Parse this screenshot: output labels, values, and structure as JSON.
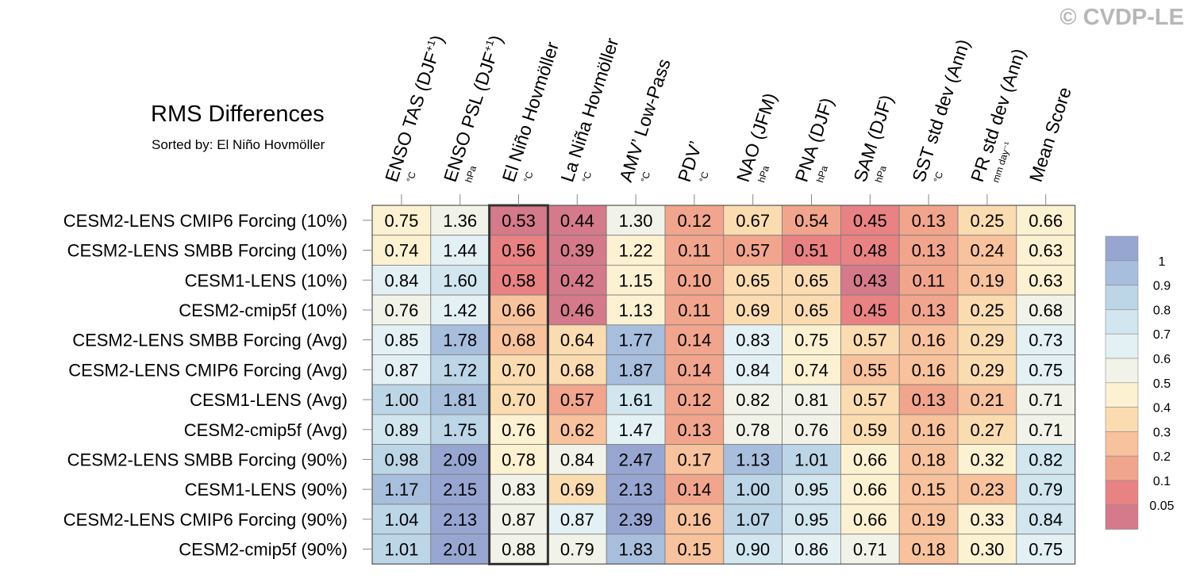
{
  "copyright": "© CVDP-LE",
  "chart_data": {
    "type": "heatmap",
    "title": "RMS Differences",
    "subtitle": "Sorted by: El Niño Hovmöller",
    "highlighted_column": "El Niño Hovmöller",
    "columns": [
      {
        "name": "ENSO TAS (DJF+1)",
        "main": "ENSO TAS (DJF",
        "sup": "+1",
        "close": ")",
        "unit": "°C"
      },
      {
        "name": "ENSO PSL (DJF+1)",
        "main": "ENSO PSL (DJF",
        "sup": "+1",
        "close": ")",
        "unit": "hPa"
      },
      {
        "name": "El Niño Hovmöller",
        "main": "El Niño Hovmöller",
        "sup": "",
        "close": "",
        "unit": "°C"
      },
      {
        "name": "La Niña Hovmöller",
        "main": "La Niña Hovmöller",
        "sup": "",
        "close": "",
        "unit": "°C"
      },
      {
        "name": "AMV’ Low-Pass",
        "main": "AMV’ Low-Pass",
        "sup": "",
        "close": "",
        "unit": "°C"
      },
      {
        "name": "PDV’",
        "main": "PDV’",
        "sup": "",
        "close": "",
        "unit": "°C"
      },
      {
        "name": "NAO (JFM)",
        "main": "NAO (JFM)",
        "sup": "",
        "close": "",
        "unit": "hPa"
      },
      {
        "name": "PNA (DJF)",
        "main": "PNA (DJF)",
        "sup": "",
        "close": "",
        "unit": "hPa"
      },
      {
        "name": "SAM (DJF)",
        "main": "SAM (DJF)",
        "sup": "",
        "close": "",
        "unit": "hPa"
      },
      {
        "name": "SST std dev (Ann)",
        "main": "SST std dev (Ann)",
        "sup": "",
        "close": "",
        "unit": "°C"
      },
      {
        "name": "PR std dev (Ann)",
        "main": "PR std dev (Ann)",
        "sup": "",
        "close": "",
        "unit": "mm day⁻¹"
      },
      {
        "name": "Mean Score",
        "main": "Mean Score",
        "sup": "",
        "close": "",
        "unit": ""
      }
    ],
    "rows": [
      {
        "name": "CESM2-LENS CMIP6 Forcing (10%)",
        "values": [
          0.75,
          1.36,
          0.53,
          0.44,
          1.3,
          0.12,
          0.67,
          0.54,
          0.45,
          0.13,
          0.25,
          0.66
        ]
      },
      {
        "name": "CESM2-LENS SMBB Forcing (10%)",
        "values": [
          0.74,
          1.44,
          0.56,
          0.39,
          1.22,
          0.11,
          0.57,
          0.51,
          0.48,
          0.13,
          0.24,
          0.63
        ]
      },
      {
        "name": "CESM1-LENS (10%)",
        "values": [
          0.84,
          1.6,
          0.58,
          0.42,
          1.15,
          0.1,
          0.65,
          0.65,
          0.43,
          0.11,
          0.19,
          0.63
        ]
      },
      {
        "name": "CESM2-cmip5f (10%)",
        "values": [
          0.76,
          1.42,
          0.66,
          0.46,
          1.13,
          0.11,
          0.69,
          0.65,
          0.45,
          0.13,
          0.25,
          0.68
        ]
      },
      {
        "name": "CESM2-LENS SMBB Forcing (Avg)",
        "values": [
          0.85,
          1.78,
          0.68,
          0.64,
          1.77,
          0.14,
          0.83,
          0.75,
          0.57,
          0.16,
          0.29,
          0.73
        ]
      },
      {
        "name": "CESM2-LENS CMIP6 Forcing (Avg)",
        "values": [
          0.87,
          1.72,
          0.7,
          0.68,
          1.87,
          0.14,
          0.84,
          0.74,
          0.55,
          0.16,
          0.29,
          0.75
        ]
      },
      {
        "name": "CESM1-LENS (Avg)",
        "values": [
          1.0,
          1.81,
          0.7,
          0.57,
          1.61,
          0.12,
          0.82,
          0.81,
          0.57,
          0.13,
          0.21,
          0.71
        ]
      },
      {
        "name": "CESM2-cmip5f (Avg)",
        "values": [
          0.89,
          1.75,
          0.76,
          0.62,
          1.47,
          0.13,
          0.78,
          0.76,
          0.59,
          0.16,
          0.27,
          0.71
        ]
      },
      {
        "name": "CESM2-LENS SMBB Forcing (90%)",
        "values": [
          0.98,
          2.09,
          0.78,
          0.84,
          2.47,
          0.17,
          1.13,
          1.01,
          0.66,
          0.18,
          0.32,
          0.82
        ]
      },
      {
        "name": "CESM1-LENS (90%)",
        "values": [
          1.17,
          2.15,
          0.83,
          0.69,
          2.13,
          0.14,
          1.0,
          0.95,
          0.66,
          0.15,
          0.23,
          0.79
        ]
      },
      {
        "name": "CESM2-LENS CMIP6 Forcing (90%)",
        "values": [
          1.04,
          2.13,
          0.87,
          0.87,
          2.39,
          0.16,
          1.07,
          0.95,
          0.66,
          0.19,
          0.33,
          0.84
        ]
      },
      {
        "name": "CESM2-cmip5f (90%)",
        "values": [
          1.01,
          2.01,
          0.88,
          0.79,
          1.83,
          0.15,
          0.9,
          0.86,
          0.71,
          0.18,
          0.3,
          0.75
        ]
      }
    ],
    "colorbar": {
      "labels": [
        "1",
        "0.9",
        "0.8",
        "0.7",
        "0.6",
        "0.5",
        "0.4",
        "0.3",
        "0.2",
        "0.1",
        "0.05"
      ],
      "colors": [
        "#97a6d1",
        "#a8bedd",
        "#bcd5e7",
        "#d1e6ef",
        "#e4f1f4",
        "#f2f3e8",
        "#fcf1d1",
        "#fbdcb0",
        "#f7c29c",
        "#f1a58d",
        "#e88283",
        "#d47a8a"
      ],
      "note": "colors scale relative to each column's values"
    }
  }
}
